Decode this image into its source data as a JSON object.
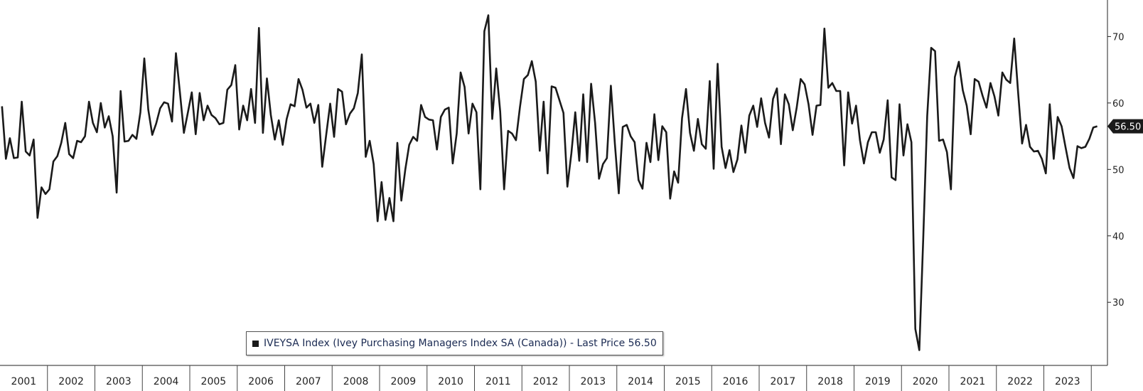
{
  "chart_data": {
    "type": "line",
    "title": "",
    "xlabel": "",
    "ylabel": "",
    "legend": {
      "label": "IVEYSA Index (Ivey Purchasing Managers Index SA (Canada)) - Last Price 56.50",
      "placement": "bottom-left"
    },
    "last_value_label": "56.50",
    "line_color": "#1a1a1a",
    "grid": false,
    "y_axis_side": "right",
    "ylim": [
      20.5,
      75.5
    ],
    "yticks": [
      30,
      40,
      50,
      60,
      70
    ],
    "x_start": "2001-01",
    "x_end": "2023-11",
    "x_tick_labels": [
      "2001",
      "2002",
      "2003",
      "2004",
      "2005",
      "2006",
      "2007",
      "2008",
      "2009",
      "2010",
      "2011",
      "2012",
      "2013",
      "2014",
      "2015",
      "2016",
      "2017",
      "2018",
      "2019",
      "2020",
      "2021",
      "2022",
      "2023"
    ],
    "series": [
      {
        "values": [
          59.5,
          51.6,
          54.7,
          51.7,
          51.8,
          60.2,
          52.7,
          52.1,
          54.5,
          42.7,
          47.3,
          46.3,
          47.0,
          51.2,
          52.0,
          54.0,
          57.0,
          52.3,
          51.7,
          54.3,
          54.1,
          55.0,
          60.2,
          57.0,
          55.6,
          60.0,
          56.3,
          58.0,
          55.0,
          46.5,
          61.8,
          54.2,
          54.3,
          55.2,
          54.6,
          58.6,
          66.7,
          59.0,
          55.2,
          56.9,
          59.2,
          60.1,
          59.9,
          57.2,
          67.5,
          61.6,
          55.5,
          58.5,
          61.6,
          55.3,
          61.5,
          57.4,
          59.6,
          58.2,
          57.7,
          56.8,
          57.0,
          62.0,
          62.7,
          65.7,
          56.0,
          59.6,
          57.4,
          62.1,
          57.0,
          71.3,
          55.5,
          63.7,
          58.2,
          54.5,
          57.4,
          53.7,
          57.6,
          59.8,
          59.5,
          63.6,
          62.0,
          59.3,
          59.9,
          57.0,
          59.7,
          50.4,
          55.2,
          59.9,
          54.9,
          62.1,
          61.7,
          56.8,
          58.4,
          59.2,
          61.5,
          67.3,
          51.9,
          54.3,
          50.8,
          42.2,
          48.1,
          42.4,
          45.7,
          42.2,
          54.0,
          45.3,
          50.0,
          53.7,
          54.9,
          54.3,
          59.7,
          57.9,
          57.5,
          57.4,
          53.0,
          57.9,
          59.0,
          59.3,
          50.9,
          55.4,
          64.6,
          62.4,
          55.4,
          59.9,
          58.6,
          47.0,
          70.8,
          73.2,
          57.6,
          65.2,
          58.7,
          47.0,
          55.8,
          55.4,
          54.4,
          59.4,
          63.6,
          64.2,
          66.3,
          63.2,
          52.8,
          60.2,
          49.4,
          62.5,
          62.3,
          60.4,
          58.5,
          47.4,
          52.4,
          58.6,
          51.3,
          61.3,
          51.1,
          62.9,
          57.0,
          48.6,
          50.8,
          51.7,
          62.6,
          53.9,
          46.4,
          56.4,
          56.7,
          55.0,
          54.1,
          48.4,
          47.1,
          54.0,
          51.1,
          58.3,
          51.4,
          56.5,
          55.6,
          45.6,
          49.7,
          48.0,
          57.7,
          62.1,
          55.5,
          52.8,
          57.6,
          53.8,
          53.1,
          63.3,
          50.1,
          65.9,
          53.4,
          50.2,
          52.9,
          49.6,
          51.5,
          56.6,
          52.5,
          58.1,
          59.6,
          56.4,
          60.7,
          57.0,
          54.8,
          60.6,
          62.2,
          53.8,
          61.3,
          59.8,
          55.9,
          59.3,
          63.6,
          62.8,
          59.8,
          55.2,
          59.6,
          59.7,
          71.2,
          62.3,
          63.0,
          61.8,
          61.8,
          50.6,
          61.6,
          56.9,
          59.6,
          54.4,
          50.9,
          54.1,
          55.6,
          55.6,
          52.5,
          54.5,
          60.4,
          48.8,
          48.4,
          59.8,
          52.1,
          56.8,
          54.1,
          26.0,
          22.8,
          39.5,
          58.0,
          68.3,
          67.8,
          54.3,
          54.5,
          52.6,
          47.0,
          63.9,
          66.2,
          61.9,
          59.6,
          55.3,
          63.6,
          63.2,
          61.1,
          59.3,
          63.0,
          61.0,
          58.1,
          64.6,
          63.5,
          63.0,
          69.7,
          61.6,
          53.9,
          56.7,
          53.4,
          52.7,
          52.8,
          51.6,
          49.4,
          59.8,
          51.6,
          57.9,
          56.5,
          53.3,
          50.2,
          48.7,
          53.5,
          53.2,
          53.4,
          54.6,
          56.3,
          56.5
        ]
      }
    ]
  }
}
